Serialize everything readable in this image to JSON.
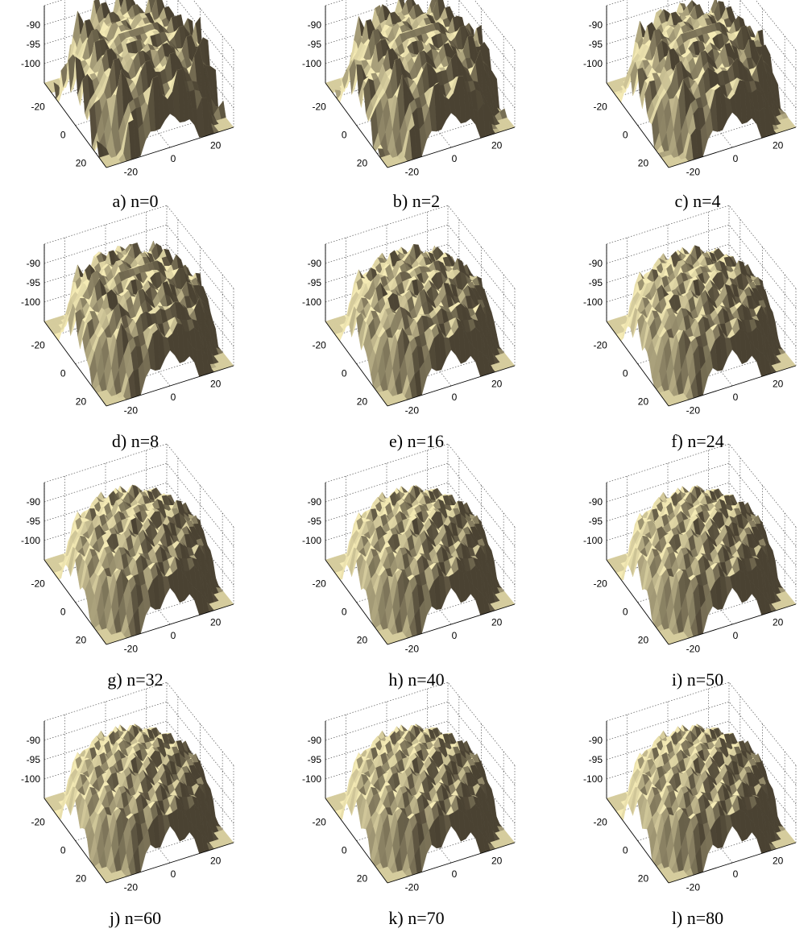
{
  "chart_data": {
    "type": "surface",
    "grid": true,
    "z_ticks": [
      "-90",
      "-95",
      "-100"
    ],
    "x_ticks": [
      "-20",
      "0",
      "20"
    ],
    "y_ticks": [
      "-20",
      "0",
      "20"
    ],
    "zlim": [
      -105,
      -85
    ],
    "surface_color": "#f5ebb5",
    "shadow_color": "#4a4232",
    "panels": [
      {
        "caption": "a) n=0",
        "n": 0
      },
      {
        "caption": "b) n=2",
        "n": 2
      },
      {
        "caption": "c) n=4",
        "n": 4
      },
      {
        "caption": "d) n=8",
        "n": 8
      },
      {
        "caption": "e) n=16",
        "n": 16
      },
      {
        "caption": "f) n=24",
        "n": 24
      },
      {
        "caption": "g) n=32",
        "n": 32
      },
      {
        "caption": "h) n=40",
        "n": 40
      },
      {
        "caption": "i) n=50",
        "n": 50
      },
      {
        "caption": "j) n=60",
        "n": 60
      },
      {
        "caption": "k) n=70",
        "n": 70
      },
      {
        "caption": "l) n=80",
        "n": 80
      }
    ]
  }
}
